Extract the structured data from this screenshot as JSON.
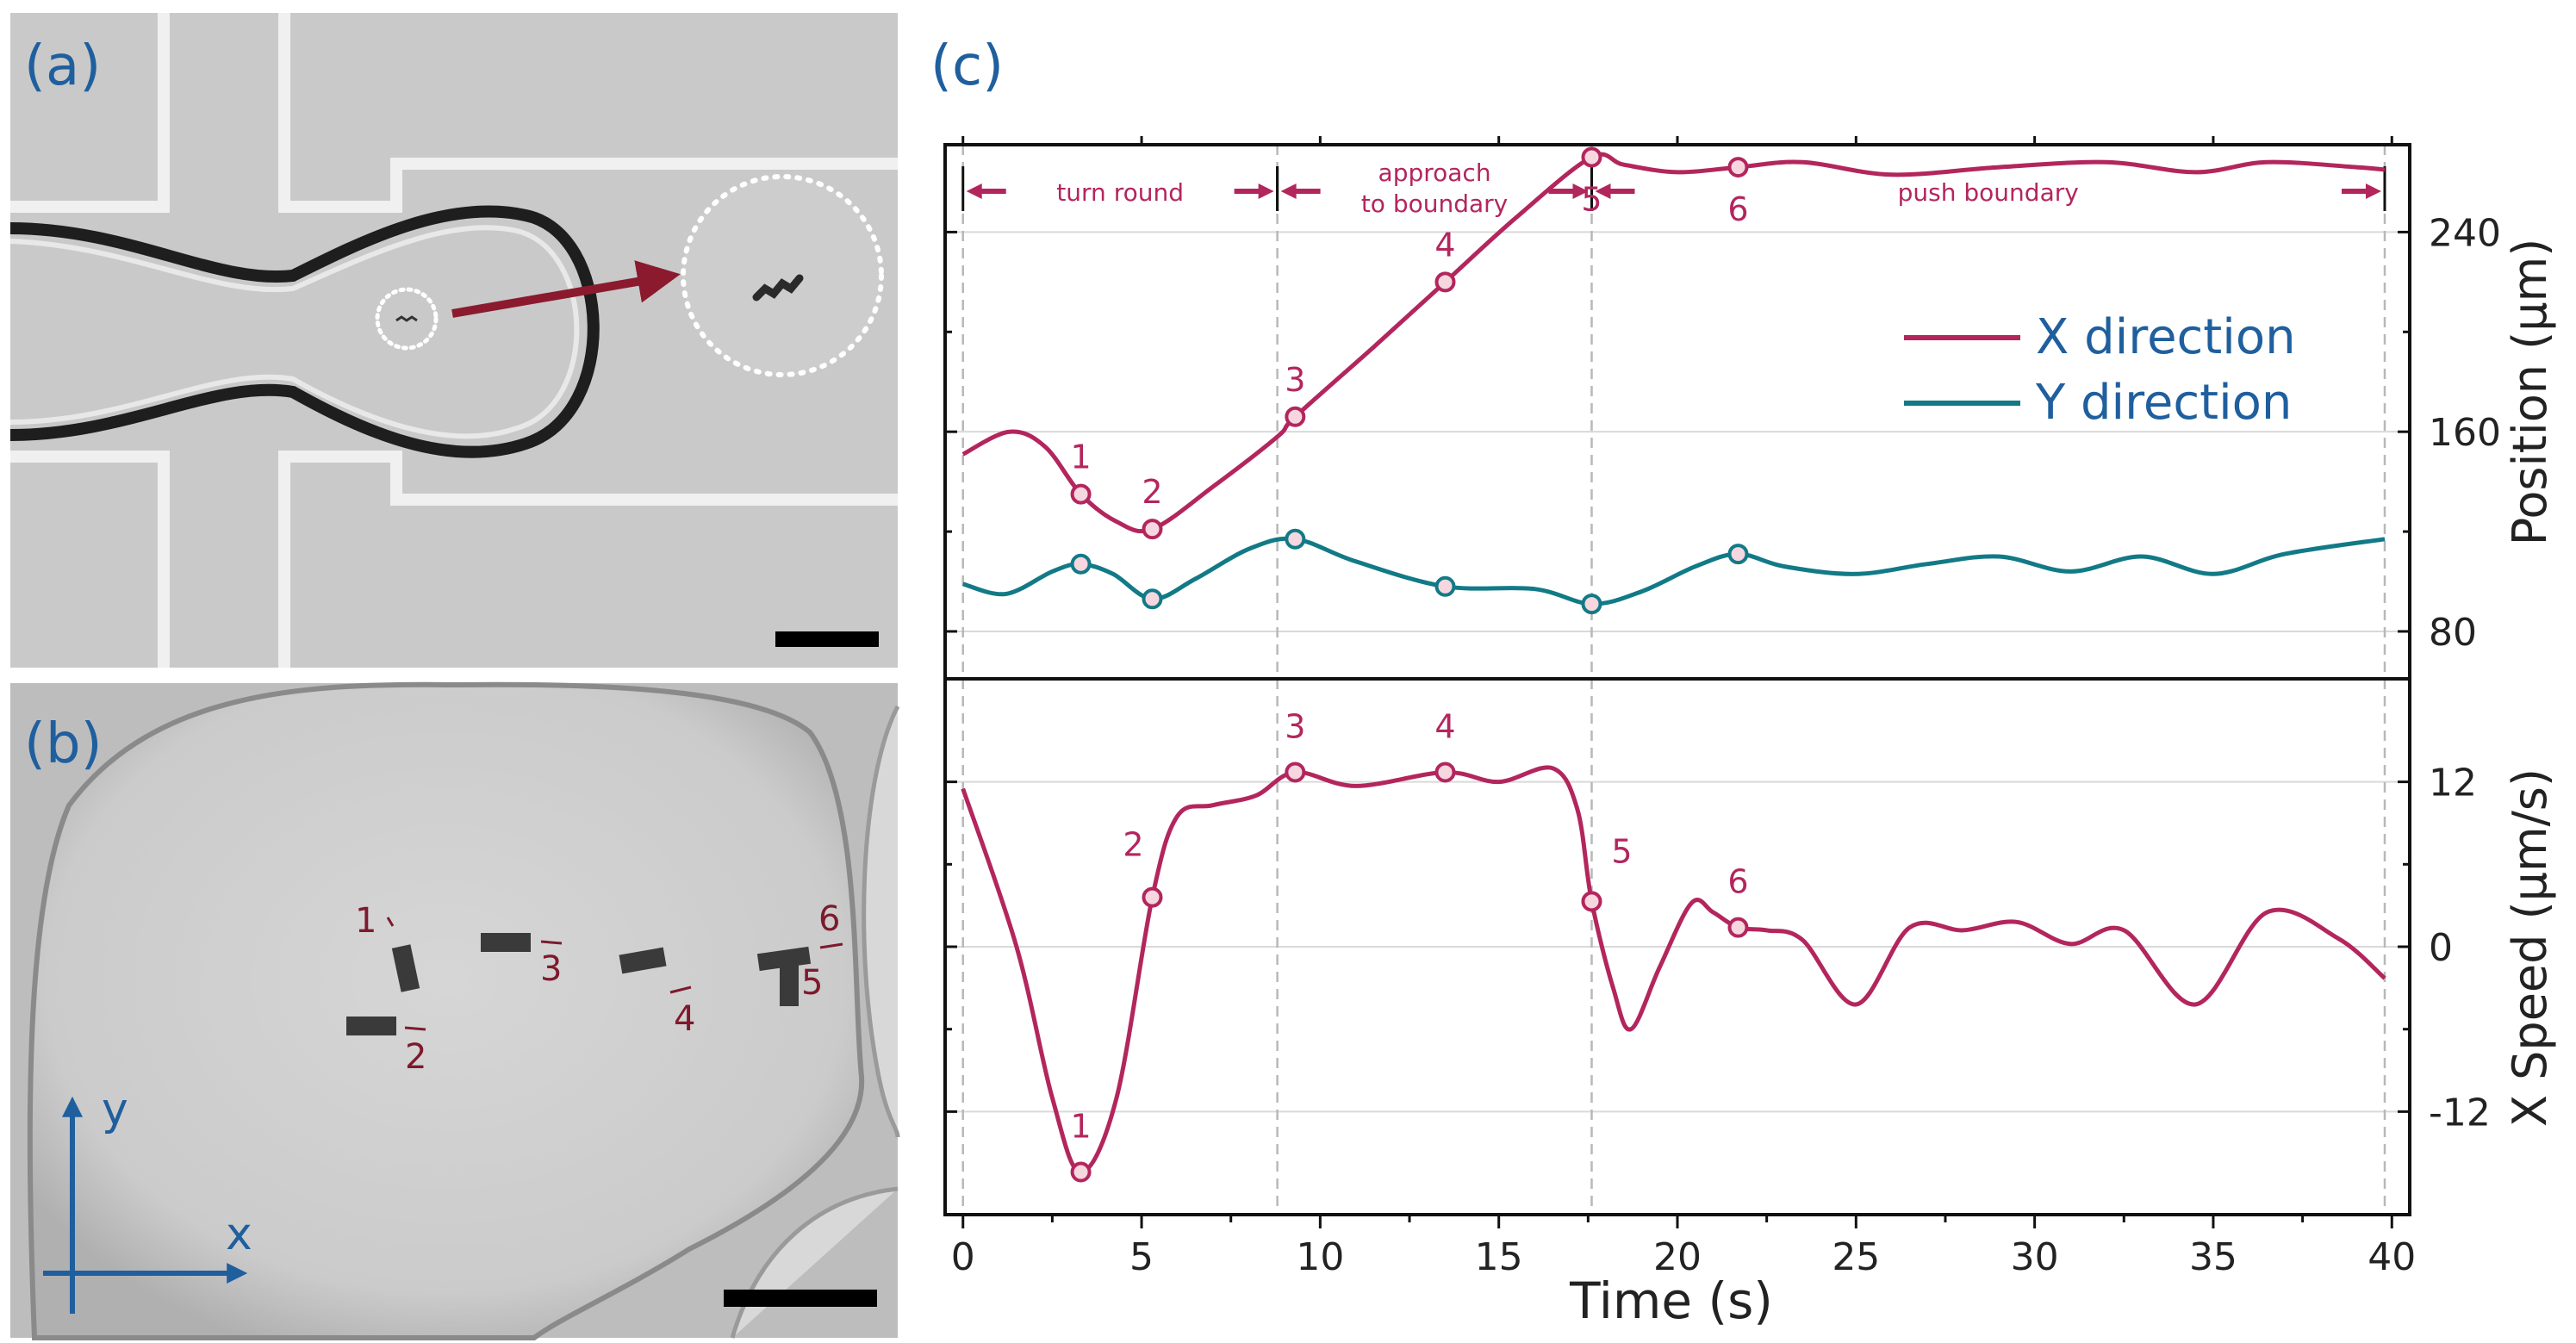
{
  "panels": {
    "a": {
      "label": "(a)"
    },
    "b": {
      "label": "(b)",
      "axis_y": "y",
      "axis_x": "x",
      "track_labels": [
        "1",
        "2",
        "3",
        "4",
        "5",
        "6"
      ]
    },
    "c": {
      "label": "(c)"
    }
  },
  "colors": {
    "x_series": "#b3265d",
    "y_series": "#127a86",
    "label_blue": "#1f5f9e",
    "marker_dark": "#7d1a2d",
    "grid": "#d9d9d9"
  },
  "chart_data": [
    {
      "type": "line",
      "title": "",
      "xlabel": "Time (s)",
      "ylabel": "Position (μm)",
      "xlim": [
        -0.5,
        40.5
      ],
      "ylim": [
        61,
        275
      ],
      "yticks": [
        80,
        160,
        240
      ],
      "xticks": [
        0,
        5,
        10,
        15,
        20,
        25,
        30,
        35,
        40
      ],
      "phases": [
        {
          "label": "turn round",
          "start": 0,
          "end": 8.8
        },
        {
          "label_line1": "approach",
          "label_line2": "to boundary",
          "start": 8.8,
          "end": 17.6
        },
        {
          "label": "push boundary",
          "start": 17.6,
          "end": 39.8
        }
      ],
      "series": [
        {
          "name": "X direction",
          "x": [
            0,
            1.3,
            2.3,
            3.3,
            4.3,
            5.3,
            7,
            8.8,
            9.3,
            11.5,
            13.5,
            15.5,
            17.6,
            18.5,
            20,
            21.7,
            23.5,
            26,
            29,
            32,
            34.5,
            36.5,
            39,
            39.8
          ],
          "y": [
            151,
            160,
            154,
            135,
            124,
            121,
            138,
            158,
            166,
            194,
            220,
            246,
            270,
            267,
            264,
            266,
            268,
            263,
            266,
            268,
            264,
            268,
            266,
            265
          ]
        },
        {
          "name": "Y direction",
          "x": [
            0,
            1.2,
            2.5,
            3.3,
            4.2,
            5.3,
            6.5,
            8,
            9.3,
            11,
            13.5,
            16,
            17.6,
            19,
            20.5,
            21.7,
            23,
            25,
            27,
            29,
            31,
            33,
            35,
            37,
            39.8
          ],
          "y": [
            99,
            95,
            104,
            107,
            103,
            93,
            101,
            113,
            117,
            108,
            98,
            97,
            91,
            96,
            106,
            111,
            106,
            103,
            107,
            110,
            104,
            110,
            103,
            111,
            117
          ]
        }
      ],
      "markers": [
        {
          "series": "X direction",
          "label": "1",
          "x": 3.3,
          "y": 135
        },
        {
          "series": "X direction",
          "label": "2",
          "x": 5.3,
          "y": 121
        },
        {
          "series": "X direction",
          "label": "3",
          "x": 9.3,
          "y": 166
        },
        {
          "series": "X direction",
          "label": "4",
          "x": 13.5,
          "y": 220
        },
        {
          "series": "X direction",
          "label": "5",
          "x": 17.6,
          "y": 270
        },
        {
          "series": "X direction",
          "label": "6",
          "x": 21.7,
          "y": 266
        },
        {
          "series": "Y direction",
          "x": 3.3,
          "y": 107
        },
        {
          "series": "Y direction",
          "x": 5.3,
          "y": 93
        },
        {
          "series": "Y direction",
          "x": 9.3,
          "y": 117
        },
        {
          "series": "Y direction",
          "x": 13.5,
          "y": 98
        },
        {
          "series": "Y direction",
          "x": 17.6,
          "y": 91
        },
        {
          "series": "Y direction",
          "x": 21.7,
          "y": 111
        }
      ]
    },
    {
      "type": "line",
      "title": "",
      "xlabel": "Time (s)",
      "ylabel": "X Speed (μm/s)",
      "xlim": [
        -0.5,
        40.5
      ],
      "ylim": [
        -19.5,
        19.5
      ],
      "yticks": [
        -12,
        0,
        12
      ],
      "xticks": [
        0,
        5,
        10,
        15,
        20,
        25,
        30,
        35,
        40
      ],
      "series": [
        {
          "name": "X speed",
          "x": [
            0,
            1.5,
            2.5,
            3.3,
            4.3,
            5.3,
            6,
            7,
            8.2,
            9.3,
            11,
            13.5,
            15,
            16.5,
            17.2,
            17.6,
            18.2,
            18.7,
            19.5,
            20.4,
            21,
            21.7,
            22.5,
            23.5,
            25,
            26.5,
            28,
            29.5,
            31,
            32.5,
            34.5,
            36.5,
            38.5,
            39.8
          ],
          "y": [
            11.5,
            0,
            -11,
            -16.4,
            -11,
            3.6,
            9.5,
            10.3,
            11,
            12.7,
            11.7,
            12.7,
            12,
            13,
            10,
            3.3,
            -3,
            -6,
            -1.5,
            3.2,
            2.5,
            1.4,
            1.2,
            0.5,
            -4.2,
            1.4,
            1.2,
            1.8,
            0.2,
            1.2,
            -4.2,
            2.5,
            0.6,
            -2.3
          ]
        }
      ],
      "markers": [
        {
          "label": "1",
          "x": 3.3,
          "y": -16.4
        },
        {
          "label": "2",
          "x": 5.3,
          "y": 3.6
        },
        {
          "label": "3",
          "x": 9.3,
          "y": 12.7
        },
        {
          "label": "4",
          "x": 13.5,
          "y": 12.7
        },
        {
          "label": "5",
          "x": 17.6,
          "y": 3.3
        },
        {
          "label": "6",
          "x": 21.7,
          "y": 1.4
        }
      ]
    }
  ]
}
